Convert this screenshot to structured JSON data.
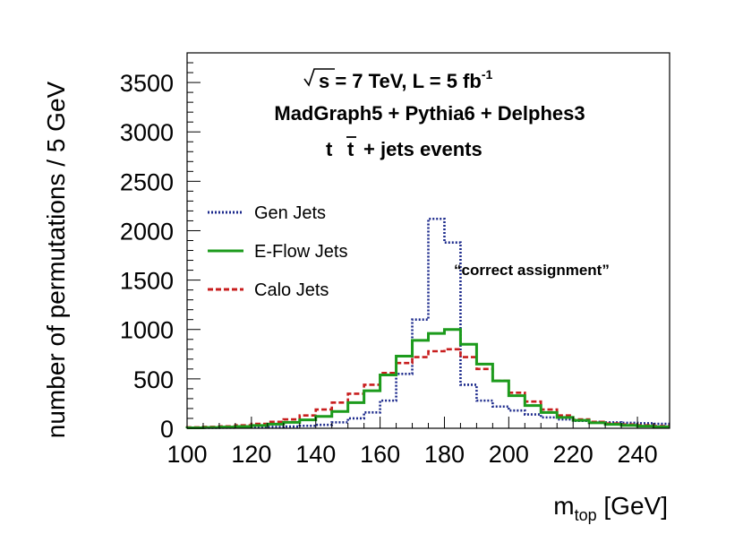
{
  "chart_data": {
    "type": "line",
    "style": "step-histogram",
    "xlabel": "m",
    "xlabel_sub": "top",
    "xlabel_unit": "[GeV]",
    "ylabel": "number of permutations / 5 GeV",
    "xlim": [
      100,
      250
    ],
    "ylim": [
      0,
      3800
    ],
    "x_ticks": [
      100,
      120,
      140,
      160,
      180,
      200,
      220,
      240
    ],
    "y_ticks": [
      0,
      500,
      1000,
      1500,
      2000,
      2500,
      3000,
      3500
    ],
    "header": {
      "line1": "s = 7 TeV, L = 5 fb",
      "line1_sup": "-1",
      "line2": "MadGraph5 + Pythia6 + Delphes3",
      "line3_t": "t",
      "line3_tbar": "t",
      "line3_rest": "+ jets  events"
    },
    "annotation": "“correct assignment”",
    "legend_position": "left",
    "bin_edges": [
      100,
      105,
      110,
      115,
      120,
      125,
      130,
      135,
      140,
      145,
      150,
      155,
      160,
      165,
      170,
      175,
      180,
      185,
      190,
      195,
      200,
      205,
      210,
      215,
      220,
      225,
      230,
      235,
      240,
      245,
      250
    ],
    "series": [
      {
        "name": "Gen Jets",
        "color": "#1c2a8c",
        "dash": "dotted",
        "values": [
          3,
          5,
          6,
          8,
          10,
          14,
          18,
          25,
          35,
          60,
          100,
          160,
          280,
          550,
          1100,
          2120,
          1880,
          440,
          280,
          220,
          180,
          140,
          110,
          90,
          75,
          65,
          60,
          55,
          50,
          45
        ]
      },
      {
        "name": "E-Flow Jets",
        "color": "#1c9b1c",
        "dash": "solid",
        "values": [
          5,
          8,
          12,
          18,
          28,
          42,
          60,
          85,
          120,
          170,
          260,
          380,
          540,
          730,
          890,
          960,
          1000,
          850,
          650,
          480,
          330,
          230,
          160,
          110,
          80,
          55,
          40,
          30,
          22,
          15
        ]
      },
      {
        "name": "Calo Jets",
        "color": "#c81e1e",
        "dash": "dashed",
        "values": [
          10,
          14,
          20,
          30,
          45,
          65,
          90,
          130,
          190,
          260,
          350,
          440,
          560,
          660,
          720,
          780,
          800,
          720,
          600,
          480,
          360,
          270,
          190,
          130,
          90,
          65,
          48,
          38,
          30,
          22
        ]
      }
    ]
  }
}
